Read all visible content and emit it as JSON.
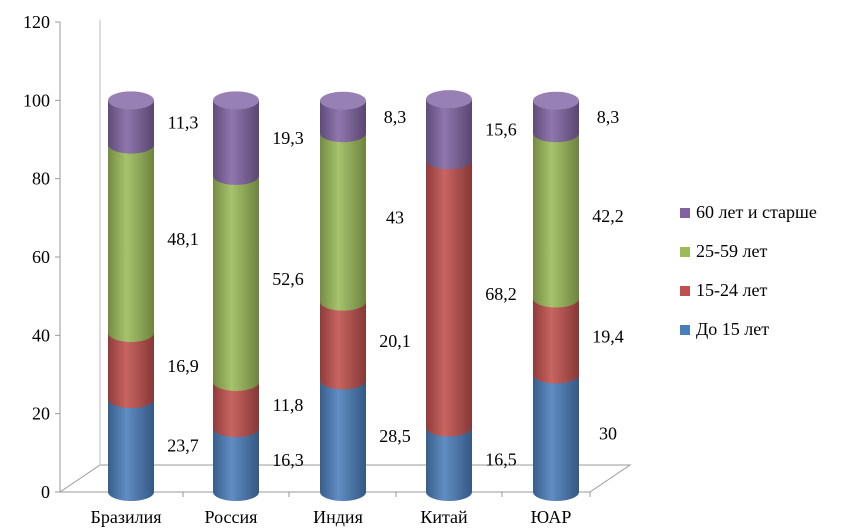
{
  "chart_data": {
    "type": "bar",
    "stacked": true,
    "title": "",
    "xlabel": "",
    "ylabel": "",
    "ylim": [
      0,
      120
    ],
    "yticks": [
      "0",
      "20",
      "40",
      "60",
      "80",
      "100",
      "120"
    ],
    "grid": false,
    "legend_position": "right",
    "categories": [
      "Бразилия",
      "Россия",
      "Индия",
      "Китай",
      "ЮАР"
    ],
    "series": [
      {
        "name": "До 15 лет",
        "color": "#4a7ebb",
        "values": [
          23.7,
          16.3,
          28.5,
          16.5,
          30
        ],
        "labels": [
          "23,7",
          "16,3",
          "28,5",
          "16,5",
          "30"
        ]
      },
      {
        "name": "15-24 лет",
        "color": "#c0504d",
        "values": [
          16.9,
          11.8,
          20.1,
          68.2,
          19.4
        ],
        "labels": [
          "16,9",
          "11,8",
          "20,1",
          "68,2",
          "19,4"
        ]
      },
      {
        "name": "25-59 лет",
        "color": "#9bbb59",
        "values": [
          48.1,
          52.6,
          43,
          0,
          42.2
        ],
        "labels": [
          "48,1",
          "52,6",
          "43",
          "",
          "42,2"
        ]
      },
      {
        "name": "60 лет и старше",
        "color": "#8064a2",
        "values": [
          11.3,
          19.3,
          8.3,
          15.6,
          8.3
        ],
        "labels": [
          "11,3",
          "19,3",
          "8,3",
          "15,6",
          "8,3"
        ]
      }
    ]
  }
}
